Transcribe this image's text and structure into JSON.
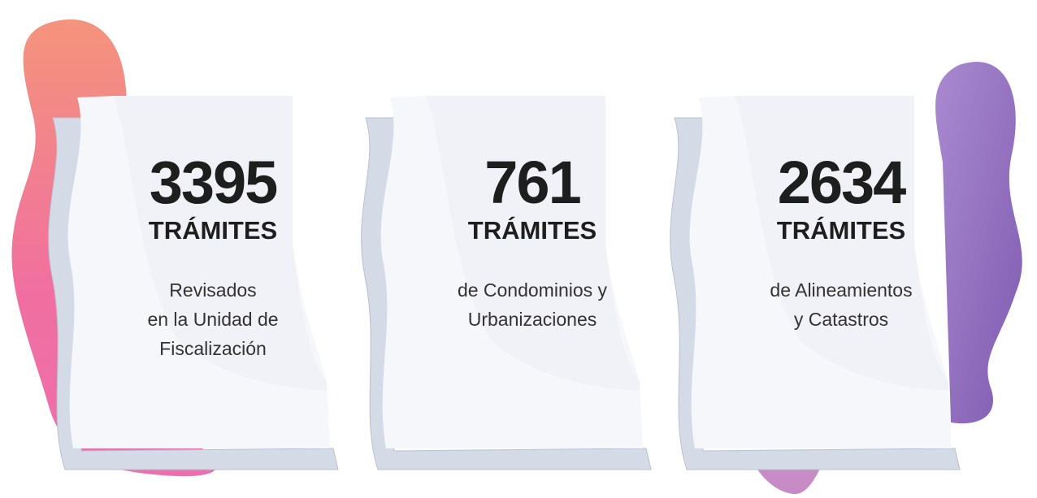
{
  "cards": [
    {
      "number": "3395",
      "unit": "TRÁMITES",
      "description": [
        "Revisados",
        "en la Unidad de",
        "Fiscalización"
      ]
    },
    {
      "number": "761",
      "unit": "TRÁMITES",
      "description": [
        "de Condominios y",
        "Urbanizaciones"
      ]
    },
    {
      "number": "2634",
      "unit": "TRÁMITES",
      "description": [
        "de Alineamientos",
        "y Catastros"
      ]
    }
  ]
}
